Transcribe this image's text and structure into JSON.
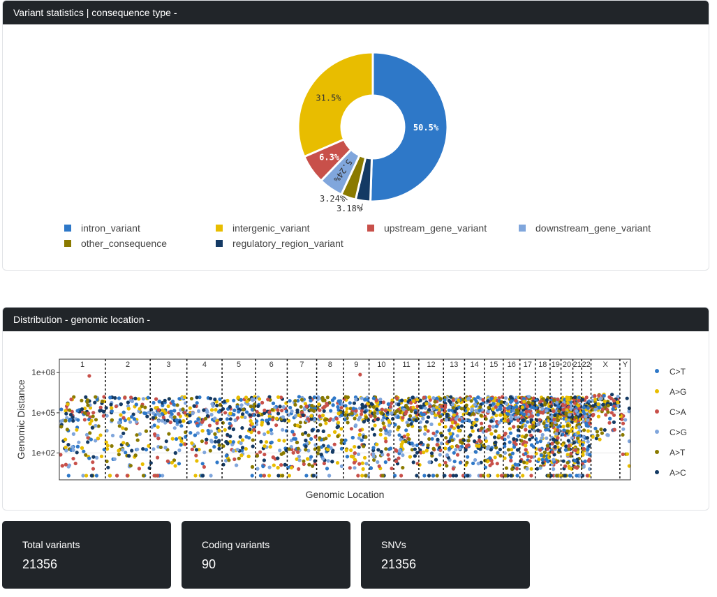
{
  "pie_card": {
    "title": "Variant statistics | consequence type -"
  },
  "dist_card": {
    "title": "Distribution - genomic location -"
  },
  "stats": [
    {
      "label": "Total variants",
      "value": "21356"
    },
    {
      "label": "Coding variants",
      "value": "90"
    },
    {
      "label": "SNVs",
      "value": "21356"
    }
  ],
  "colors": {
    "header_bg": "#212529",
    "intron": "#2e78c8",
    "intergenic": "#e8bd00",
    "upstream": "#c8504a",
    "downstream": "#80a6dc",
    "other": "#8a7a00",
    "regulatory": "#143a64"
  },
  "chart_data": [
    {
      "type": "pie",
      "donut": true,
      "slices": [
        {
          "label": "intron_variant",
          "value": 50.5,
          "text": "50.5%",
          "color": "#2e78c8"
        },
        {
          "label": "regulatory_region_variant",
          "value": 3.18,
          "text": "3.18%",
          "color": "#143a64"
        },
        {
          "label": "other_consequence",
          "value": 3.24,
          "text": "3.24%",
          "color": "#8a7a00"
        },
        {
          "label": "downstream_gene_variant",
          "value": 5.24,
          "text": "5.24%",
          "color": "#80a6dc"
        },
        {
          "label": "upstream_gene_variant",
          "value": 6.3,
          "text": "6.3%",
          "color": "#c8504a"
        },
        {
          "label": "intergenic_variant",
          "value": 31.5,
          "text": "31.5%",
          "color": "#e8bd00"
        }
      ],
      "legend": [
        {
          "label": "intron_variant",
          "color": "#2e78c8"
        },
        {
          "label": "intergenic_variant",
          "color": "#e8bd00"
        },
        {
          "label": "upstream_gene_variant",
          "color": "#c8504a"
        },
        {
          "label": "downstream_gene_variant",
          "color": "#80a6dc"
        },
        {
          "label": "other_consequence",
          "color": "#8a7a00"
        },
        {
          "label": "regulatory_region_variant",
          "color": "#143a64"
        }
      ],
      "legend_position": "bottom"
    },
    {
      "type": "scatter",
      "title": "",
      "xlabel": "Genomic Location",
      "ylabel": "Genomic Distance",
      "y_scale": "log10",
      "ylim": [
        1,
        1000000000
      ],
      "y_ticks": [
        {
          "value": 100,
          "label": "1e+02"
        },
        {
          "value": 100000,
          "label": "1e+05"
        },
        {
          "value": 100000000,
          "label": "1e+08"
        }
      ],
      "chromosomes": [
        {
          "name": "1",
          "size": 249
        },
        {
          "name": "2",
          "size": 242
        },
        {
          "name": "3",
          "size": 198
        },
        {
          "name": "4",
          "size": 190
        },
        {
          "name": "5",
          "size": 181
        },
        {
          "name": "6",
          "size": 171
        },
        {
          "name": "7",
          "size": 159
        },
        {
          "name": "8",
          "size": 145
        },
        {
          "name": "9",
          "size": 138
        },
        {
          "name": "10",
          "size": 134
        },
        {
          "name": "11",
          "size": 135
        },
        {
          "name": "12",
          "size": 133
        },
        {
          "name": "13",
          "size": 114
        },
        {
          "name": "14",
          "size": 107
        },
        {
          "name": "15",
          "size": 102
        },
        {
          "name": "16",
          "size": 90
        },
        {
          "name": "17",
          "size": 83
        },
        {
          "name": "18",
          "size": 80
        },
        {
          "name": "19",
          "size": 59
        },
        {
          "name": "20",
          "size": 64
        },
        {
          "name": "21",
          "size": 47
        },
        {
          "name": "22",
          "size": 51
        },
        {
          "name": "X",
          "size": 156
        },
        {
          "name": "Y",
          "size": 57
        }
      ],
      "series": [
        {
          "name": "C>T",
          "color": "#2e78c8"
        },
        {
          "name": "A>G",
          "color": "#e8bd00"
        },
        {
          "name": "C>A",
          "color": "#c8504a"
        },
        {
          "name": "C>G",
          "color": "#80a6dc"
        },
        {
          "name": "A>T",
          "color": "#8a7a00"
        },
        {
          "name": "A>C",
          "color": "#143a64"
        }
      ],
      "points_total": 21356,
      "legend_position": "right",
      "grid": true
    }
  ]
}
